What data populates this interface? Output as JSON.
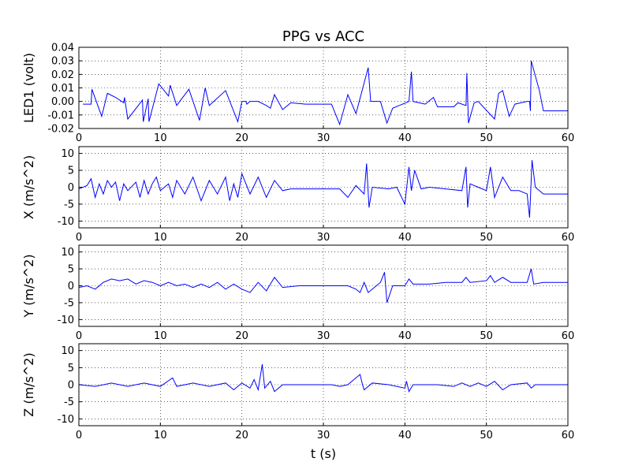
{
  "chart_data": [
    {
      "type": "line",
      "title": "PPG vs ACC",
      "ylabel": "LED1 (volt)",
      "x": [
        0.5,
        1.5,
        1.6,
        2.8,
        3.5,
        4.5,
        5.5,
        5.6,
        6,
        7.8,
        7.9,
        8.5,
        8.6,
        9.8,
        11,
        11.2,
        12,
        13.5,
        14.8,
        15.5,
        16,
        18,
        19.5,
        20,
        20.5,
        20.6,
        21,
        22,
        23,
        23.5,
        24,
        25,
        26,
        27.8,
        31,
        32,
        33,
        34,
        35.5,
        35.8,
        37,
        37.8,
        38.5,
        40.5,
        40.8,
        41,
        42.5,
        43.5,
        44,
        46,
        46.5,
        47.5,
        47.6,
        47.8,
        48.5,
        49,
        51,
        51.5,
        52,
        52.8,
        53.5,
        55,
        55.3,
        55.4,
        55.5,
        56.5,
        57,
        60
      ],
      "series": [
        {
          "color": "#0000ff",
          "values": [
            -0.002,
            -0.002,
            0.009,
            -0.011,
            0.006,
            0.003,
            -0.001,
            0.003,
            -0.013,
            0.001,
            -0.015,
            0.002,
            -0.015,
            0.013,
            0.004,
            0.012,
            -0.003,
            0.009,
            -0.014,
            0.01,
            -0.003,
            0.008,
            -0.015,
            0.0,
            0.0,
            -0.002,
            0.0,
            0.0,
            -0.003,
            -0.005,
            0.005,
            -0.006,
            -0.001,
            -0.002,
            -0.002,
            -0.017,
            0.005,
            -0.009,
            0.025,
            0.0,
            0.0,
            -0.016,
            -0.005,
            0.0,
            0.022,
            0.0,
            -0.002,
            0.003,
            -0.004,
            -0.004,
            -0.001,
            -0.003,
            0.021,
            -0.016,
            -0.001,
            0.0,
            -0.013,
            0.006,
            0.008,
            -0.011,
            -0.002,
            0.0,
            0.0,
            -0.007,
            0.03,
            0.008,
            -0.007,
            -0.007
          ]
        }
      ],
      "xlim": [
        0,
        60
      ],
      "xticks": [
        0,
        10,
        20,
        30,
        40,
        50,
        60
      ],
      "ylim": [
        -0.02,
        0.04
      ],
      "yticks": [
        -0.02,
        -0.01,
        {
          "value": 0,
          "label": "0.00"
        },
        0.01,
        0.02,
        0.03,
        0.04
      ],
      "grid": true
    },
    {
      "type": "line",
      "ylabel": "X (m/s^2)",
      "x": [
        0,
        1,
        1.5,
        2,
        2.5,
        3,
        3.5,
        4,
        4.5,
        5,
        5.5,
        6,
        7,
        7.5,
        8,
        8.5,
        9,
        9.5,
        10,
        11,
        11.5,
        12,
        13,
        14,
        15,
        16,
        17,
        18,
        18.5,
        19,
        19.5,
        20,
        21,
        22,
        23,
        24,
        25,
        26,
        28,
        30,
        32,
        33,
        34,
        35,
        35.3,
        35.6,
        36,
        38,
        39,
        40,
        40.5,
        40.8,
        41.2,
        42,
        43,
        45,
        47,
        47.5,
        47.7,
        48,
        49,
        50,
        50.5,
        51,
        52,
        53,
        54,
        55,
        55.3,
        55.6,
        56,
        57,
        58,
        60
      ],
      "series": [
        {
          "color": "#0000ff",
          "values": [
            -0.5,
            0.5,
            2.5,
            -3,
            1,
            -2,
            2,
            0,
            1.5,
            -4,
            1,
            -1,
            1.5,
            -3,
            2,
            -2,
            1,
            3,
            -1,
            1,
            -3,
            2,
            -2,
            3,
            -4,
            2,
            -2,
            3,
            -4,
            1,
            -3,
            4,
            -2,
            3,
            -3,
            2,
            -1,
            -0.5,
            -0.5,
            -0.5,
            -0.5,
            -3,
            0.5,
            -2,
            7,
            -6,
            0,
            -0.5,
            0,
            -5,
            6,
            -1,
            5,
            -0.5,
            0,
            -0.5,
            -1,
            6,
            -6,
            1,
            0,
            -1,
            6,
            -3,
            3,
            -1,
            -1,
            -2,
            -9,
            8,
            0,
            -2,
            -2,
            -2
          ]
        }
      ],
      "xlim": [
        0,
        60
      ],
      "xticks": [
        0,
        10,
        20,
        30,
        40,
        50,
        60
      ],
      "ylim": [
        -12,
        12
      ],
      "yticks": [
        -10,
        -5,
        0,
        5,
        10
      ],
      "grid": true
    },
    {
      "type": "line",
      "ylabel": "Y (m/s^2)",
      "x": [
        0,
        1,
        2,
        3,
        4,
        5,
        6,
        7,
        8,
        9,
        10,
        11,
        12,
        13,
        14,
        15,
        16,
        17,
        18,
        19,
        20,
        21,
        22,
        23,
        24,
        25,
        27,
        30,
        33,
        34,
        34.5,
        35,
        35.5,
        36,
        37,
        37.5,
        37.8,
        38.5,
        40,
        40.5,
        41,
        43,
        45,
        47,
        47.5,
        48,
        50,
        50.5,
        51,
        52,
        53,
        55,
        55.5,
        55.8,
        57,
        60
      ],
      "series": [
        {
          "color": "#0000ff",
          "values": [
            -0.5,
            0,
            -1,
            1,
            2,
            1.5,
            2,
            0.5,
            1.5,
            1,
            0,
            1,
            0,
            0.5,
            -0.5,
            0.5,
            -0.5,
            1,
            -1,
            0.5,
            -1,
            -2,
            1,
            -1.5,
            2.5,
            -0.5,
            0,
            0,
            0,
            -1,
            -2,
            1,
            -2,
            -1,
            1,
            4,
            -5,
            0,
            0,
            2,
            0.5,
            0.5,
            1,
            1,
            2.5,
            1,
            1.5,
            3,
            1,
            2.5,
            1,
            1,
            5,
            0.5,
            1,
            1
          ]
        }
      ],
      "xlim": [
        0,
        60
      ],
      "xticks": [
        0,
        10,
        20,
        30,
        40,
        50,
        60
      ],
      "ylim": [
        -12,
        12
      ],
      "yticks": [
        -10,
        -5,
        0,
        5,
        10
      ],
      "grid": true
    },
    {
      "type": "line",
      "ylabel": "Z (m/s^2)",
      "xlabel": "t (s)",
      "x": [
        0,
        2,
        4,
        6,
        8,
        10,
        11.5,
        12,
        14,
        16,
        18,
        19,
        20,
        21,
        21.5,
        22,
        22.5,
        22.8,
        23.5,
        24,
        25,
        28,
        31,
        32,
        33,
        34.5,
        34.8,
        35,
        36,
        38,
        40,
        40.2,
        40.5,
        41,
        44,
        46,
        47,
        48,
        49,
        50,
        51,
        52,
        53,
        55,
        55.5,
        56,
        60
      ],
      "series": [
        {
          "color": "#0000ff",
          "values": [
            0,
            -0.5,
            0.5,
            -0.5,
            0.5,
            -0.5,
            2,
            -0.5,
            0.5,
            -0.5,
            0.5,
            -1.5,
            0.5,
            -1,
            1.5,
            -1.5,
            6,
            -1,
            1,
            -2,
            0,
            0,
            0,
            -0.5,
            0,
            3,
            0,
            -1.5,
            0.5,
            0,
            -1,
            1,
            -2,
            0,
            0,
            -0.5,
            0.5,
            -0.5,
            0.5,
            -0.5,
            1,
            -1.5,
            0,
            0.5,
            -1,
            0,
            0
          ]
        }
      ],
      "xlim": [
        0,
        60
      ],
      "xticks": [
        0,
        10,
        20,
        30,
        40,
        50,
        60
      ],
      "ylim": [
        -12,
        12
      ],
      "yticks": [
        -10,
        -5,
        0,
        5,
        10
      ],
      "grid": true
    }
  ]
}
